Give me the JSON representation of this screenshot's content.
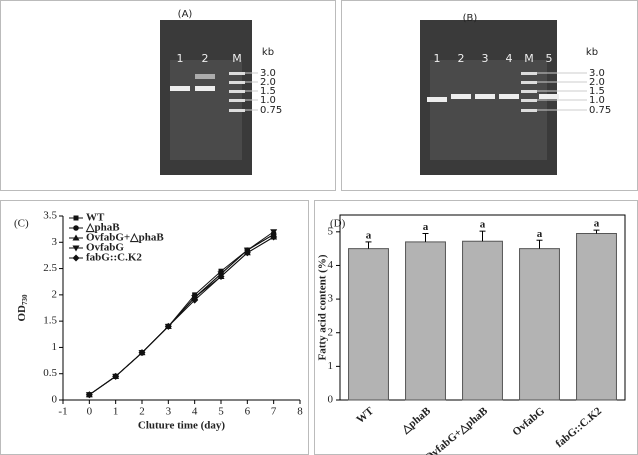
{
  "gels": [
    {
      "label": "(A)",
      "lanes": [
        "1",
        "2",
        "M"
      ],
      "unit": "kb",
      "ladder": [
        "3.0",
        "2.0",
        "1.5",
        "1.0",
        "0.75"
      ]
    },
    {
      "label": "(B)",
      "lanes": [
        "1",
        "2",
        "3",
        "4",
        "M",
        "5"
      ],
      "unit": "kb",
      "ladder": [
        "3.0",
        "2.0",
        "1.5",
        "1.0",
        "0.75"
      ]
    }
  ],
  "chart_data": [
    {
      "type": "line",
      "panel": "(C)",
      "xlabel": "Cluture time (day)",
      "ylabel": "OD",
      "ylabel_subscript": "730",
      "x": [
        0,
        1,
        2,
        3,
        4,
        5,
        6,
        7
      ],
      "xlim": [
        -1,
        8
      ],
      "xticks": [
        -1,
        0,
        1,
        2,
        3,
        4,
        5,
        6,
        7,
        8
      ],
      "ylim": [
        0,
        3.5
      ],
      "yticks": [
        0,
        0.5,
        1,
        1.5,
        2,
        2.5,
        3,
        3.5
      ],
      "series": [
        {
          "name": "WT",
          "color": "#111",
          "marker": "square",
          "values": [
            0.1,
            0.45,
            0.9,
            1.4,
            2.0,
            2.45,
            2.85,
            3.15
          ]
        },
        {
          "name": "△phaB",
          "color": "#111",
          "marker": "circle",
          "values": [
            0.1,
            0.45,
            0.9,
            1.4,
            1.95,
            2.4,
            2.85,
            3.15
          ]
        },
        {
          "name": "OvfabG+△phaB",
          "color": "#111",
          "marker": "triangle-up",
          "values": [
            0.1,
            0.45,
            0.9,
            1.4,
            1.95,
            2.35,
            2.8,
            3.1
          ]
        },
        {
          "name": "OvfabG",
          "color": "#111",
          "marker": "triangle-down",
          "values": [
            0.1,
            0.45,
            0.9,
            1.4,
            1.95,
            2.4,
            2.85,
            3.2
          ]
        },
        {
          "name": "fabG::C.K2",
          "color": "#111",
          "marker": "diamond",
          "values": [
            0.1,
            0.45,
            0.9,
            1.4,
            1.9,
            2.35,
            2.8,
            3.1
          ]
        }
      ]
    },
    {
      "type": "bar",
      "panel": "(D)",
      "ylabel": "Fatty acid content (%)",
      "categories": [
        "WT",
        "△phaB",
        "OvfabG+△phaB",
        "OvfabG",
        "fabG::C.K2"
      ],
      "values": [
        4.5,
        4.7,
        4.72,
        4.5,
        4.95
      ],
      "errors": [
        0.2,
        0.25,
        0.3,
        0.25,
        0.1
      ],
      "annotations": [
        "a",
        "a",
        "a",
        "a",
        "a"
      ],
      "color": "#b3b3b3",
      "ylim": [
        0,
        5.5
      ],
      "yticks": [
        0,
        1,
        2,
        3,
        4,
        5
      ]
    }
  ]
}
